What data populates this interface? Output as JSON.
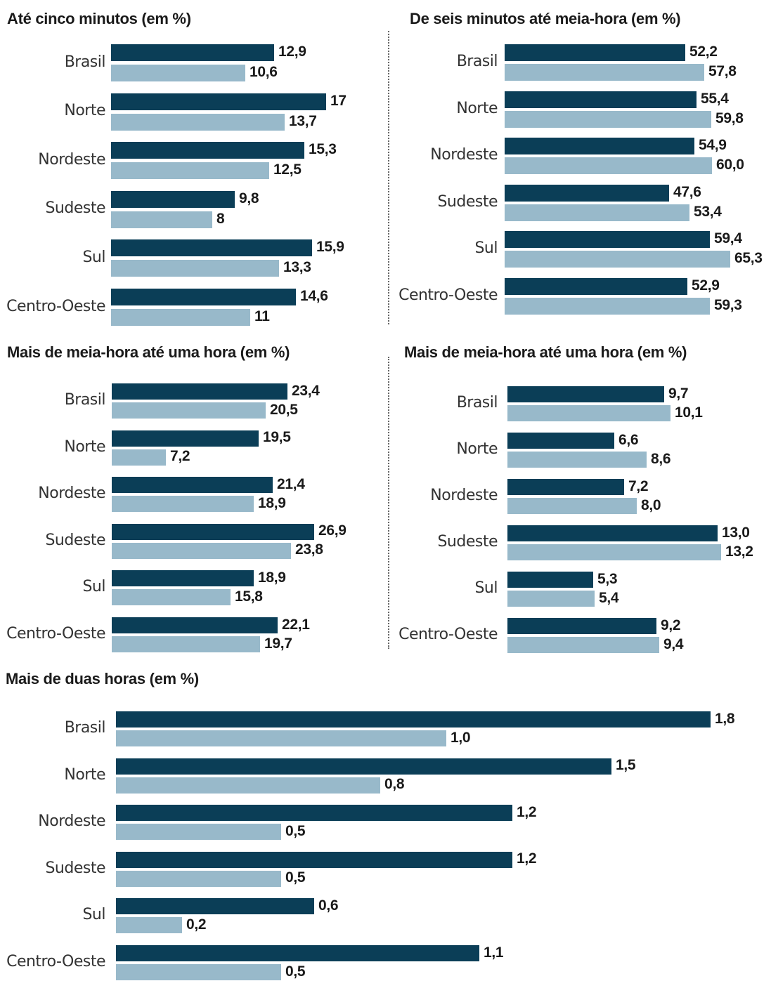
{
  "colors": {
    "series_dark": "#0b3e57",
    "series_light": "#98b9ca",
    "text": "#1a1a1a",
    "category_text": "#333333"
  },
  "chart_data": [
    {
      "type": "bar",
      "orientation": "horizontal",
      "title": "Até cinco minutos  (em %)",
      "categories": [
        "Brasil",
        "Norte",
        "Nordeste",
        "Sudeste",
        "Sul",
        "Centro-Oeste"
      ],
      "series": [
        {
          "values": [
            12.9,
            17,
            15.3,
            9.8,
            15.9,
            14.6
          ],
          "labels": [
            "12,9",
            "17",
            "15,3",
            "9,8",
            "15,9",
            "14,6"
          ],
          "color": "#0b3e57"
        },
        {
          "values": [
            10.6,
            13.7,
            12.5,
            8,
            13.3,
            11
          ],
          "labels": [
            "10,6",
            "13,7",
            "12,5",
            "8",
            "13,3",
            "11"
          ],
          "color": "#98b9ca"
        }
      ],
      "grid": false,
      "legend": "none"
    },
    {
      "type": "bar",
      "orientation": "horizontal",
      "title": "De seis minutos até meia-hora (em %)",
      "categories": [
        "Brasil",
        "Norte",
        "Nordeste",
        "Sudeste",
        "Sul",
        "Centro-Oeste"
      ],
      "series": [
        {
          "values": [
            52.2,
            55.4,
            54.9,
            47.6,
            59.4,
            52.9
          ],
          "labels": [
            "52,2",
            "55,4",
            "54,9",
            "47,6",
            "59,4",
            "52,9"
          ],
          "color": "#0b3e57"
        },
        {
          "values": [
            57.8,
            59.8,
            60.0,
            53.4,
            65.3,
            59.3
          ],
          "labels": [
            "57,8",
            "59,8",
            "60,0",
            "53,4",
            "65,3",
            "59,3"
          ],
          "color": "#98b9ca"
        }
      ],
      "grid": false,
      "legend": "none"
    },
    {
      "type": "bar",
      "orientation": "horizontal",
      "title": "Mais de meia-hora até uma hora  (em %)",
      "categories": [
        "Brasil",
        "Norte",
        "Nordeste",
        "Sudeste",
        "Sul",
        "Centro-Oeste"
      ],
      "series": [
        {
          "values": [
            23.4,
            19.5,
            21.4,
            26.9,
            18.9,
            22.1
          ],
          "labels": [
            "23,4",
            "19,5",
            "21,4",
            "26,9",
            "18,9",
            "22,1"
          ],
          "color": "#0b3e57"
        },
        {
          "values": [
            20.5,
            7.2,
            18.9,
            23.8,
            15.8,
            19.7
          ],
          "labels": [
            "20,5",
            "7,2",
            "18,9",
            "23,8",
            "15,8",
            "19,7"
          ],
          "color": "#98b9ca"
        }
      ],
      "grid": false,
      "legend": "none"
    },
    {
      "type": "bar",
      "orientation": "horizontal",
      "title": "Mais de meia-hora até uma hora  (em %)",
      "categories": [
        "Brasil",
        "Norte",
        "Nordeste",
        "Sudeste",
        "Sul",
        "Centro-Oeste"
      ],
      "series": [
        {
          "values": [
            9.7,
            6.6,
            7.2,
            13.0,
            5.3,
            9.2
          ],
          "labels": [
            "9,7",
            "6,6",
            "7,2",
            "13,0",
            "5,3",
            "9,2"
          ],
          "color": "#0b3e57"
        },
        {
          "values": [
            10.1,
            8.6,
            8.0,
            13.2,
            5.4,
            9.4
          ],
          "labels": [
            "10,1",
            "8,6",
            "8,0",
            "13,2",
            "5,4",
            "9,4"
          ],
          "color": "#98b9ca"
        }
      ],
      "grid": false,
      "legend": "none"
    },
    {
      "type": "bar",
      "orientation": "horizontal",
      "title": "Mais de duas horas  (em %)",
      "categories": [
        "Brasil",
        "Norte",
        "Nordeste",
        "Sudeste",
        "Sul",
        "Centro-Oeste"
      ],
      "series": [
        {
          "values": [
            1.8,
            1.5,
            1.2,
            1.2,
            0.6,
            1.1
          ],
          "labels": [
            "1,8",
            "1,5",
            "1,2",
            "1,2",
            "0,6",
            "1,1"
          ],
          "color": "#0b3e57"
        },
        {
          "values": [
            1.0,
            0.8,
            0.5,
            0.5,
            0.2,
            0.5
          ],
          "labels": [
            "1,0",
            "0,8",
            "0,5",
            "0,5",
            "0,2",
            "0,5"
          ],
          "color": "#98b9ca"
        }
      ],
      "grid": false,
      "legend": "none"
    }
  ]
}
